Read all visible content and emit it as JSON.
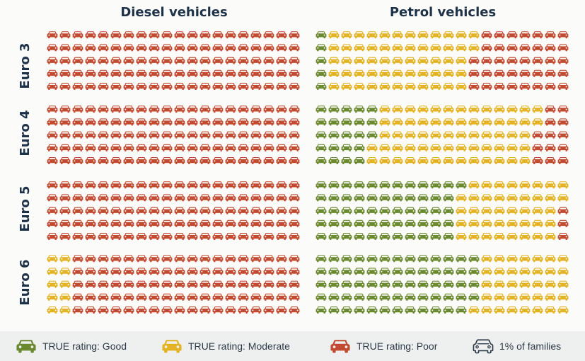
{
  "chart_data": {
    "type": "pictogram",
    "unit": "1% of families",
    "columns": [
      {
        "key": "diesel",
        "title": "Diesel vehicles"
      },
      {
        "key": "petrol",
        "title": "Petrol vehicles"
      }
    ],
    "rows": [
      {
        "label": "Euro 3",
        "diesel": {
          "Good": 0,
          "Moderate": 0,
          "Poor": 100
        },
        "petrol": {
          "Good": 5,
          "Moderate": 57,
          "Poor": 38
        }
      },
      {
        "label": "Euro 4",
        "diesel": {
          "Good": 0,
          "Moderate": 0,
          "Poor": 100
        },
        "petrol": {
          "Good": 23,
          "Moderate": 64,
          "Poor": 13
        }
      },
      {
        "label": "Euro 5",
        "diesel": {
          "Good": 0,
          "Moderate": 0,
          "Poor": 100
        },
        "petrol": {
          "Good": 56,
          "Moderate": 41,
          "Poor": 3
        }
      },
      {
        "label": "Euro 6",
        "diesel": {
          "Good": 0,
          "Moderate": 10,
          "Poor": 90
        },
        "petrol": {
          "Good": 64,
          "Moderate": 36,
          "Poor": 0
        }
      }
    ],
    "grid": {
      "rows": 5,
      "cols": 20
    },
    "categories": [
      "Good",
      "Moderate",
      "Poor"
    ],
    "colors": {
      "Good": "#6b8a2f",
      "Moderate": "#e3b323",
      "Poor": "#c24a30"
    }
  },
  "legend": {
    "good": "TRUE rating: Good",
    "moderate": "TRUE rating: Moderate",
    "poor": "TRUE rating: Poor",
    "unit": "1% of families"
  }
}
